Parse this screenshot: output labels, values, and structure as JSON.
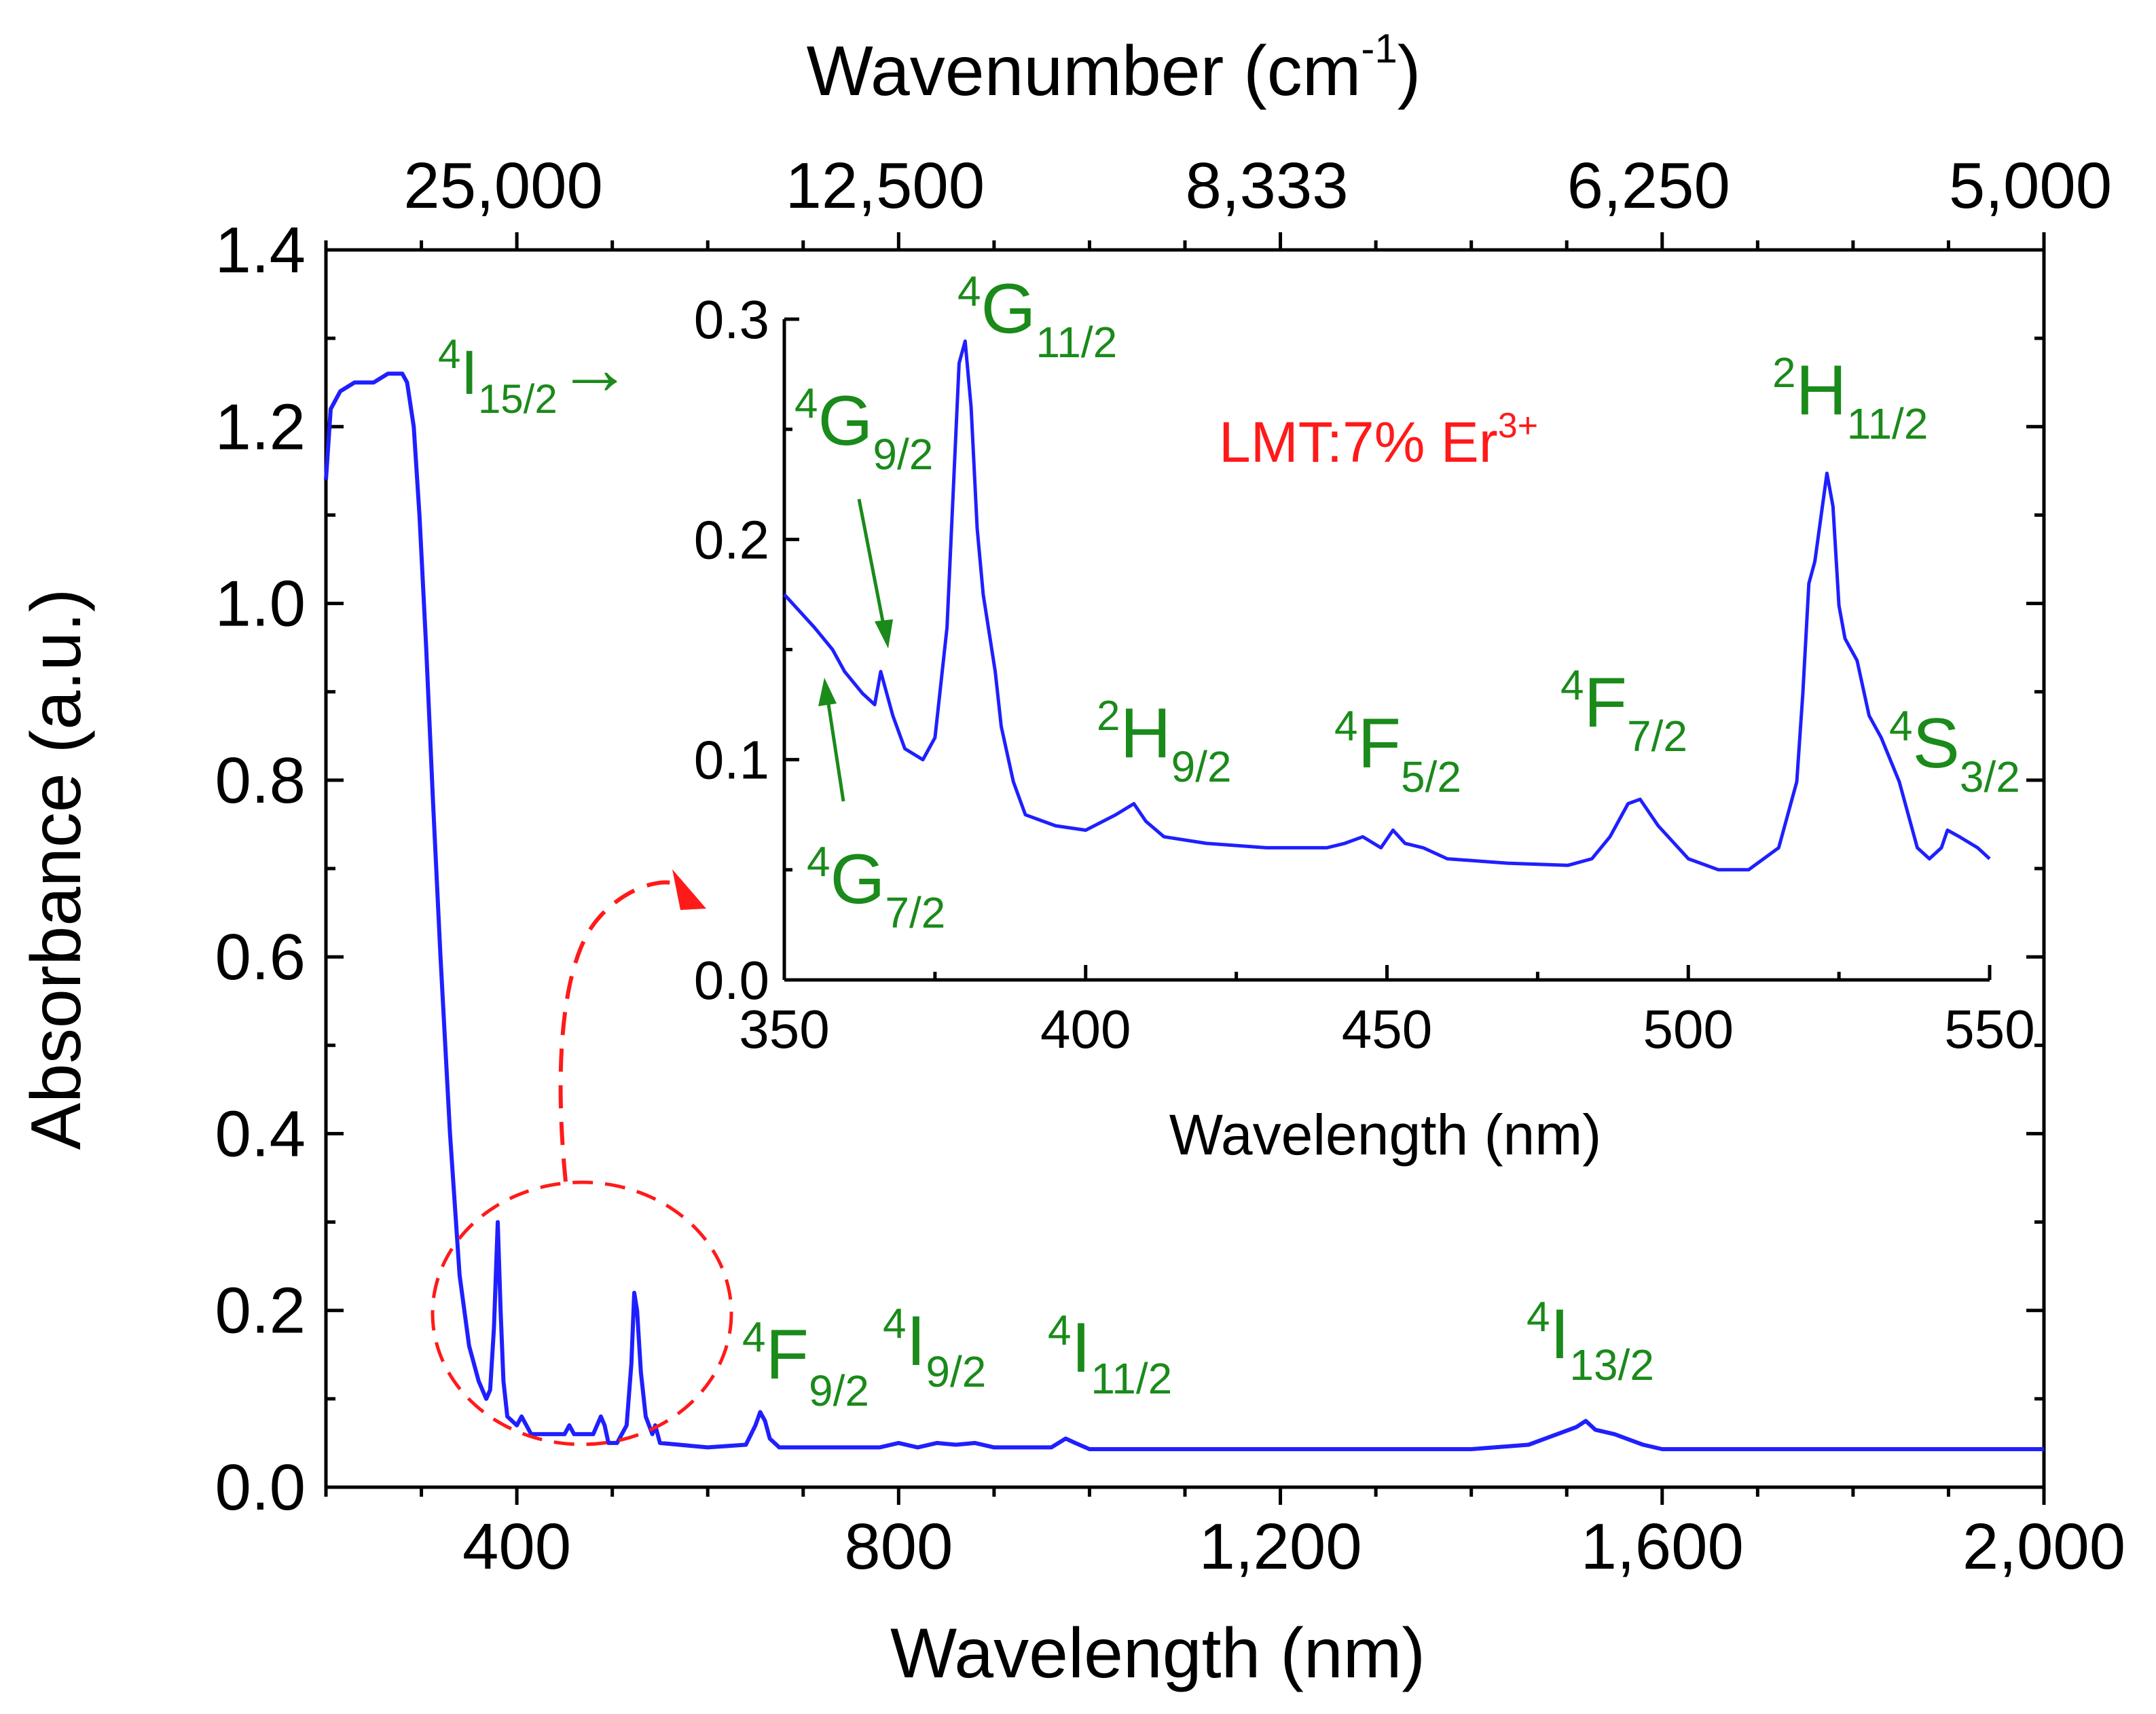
{
  "chart_data": [
    {
      "type": "line",
      "id": "main",
      "xlabel": "Wavelength (nm)",
      "ylabel": "Absorbance (a.u.)",
      "top_axis": {
        "label_main": "Wavenumber (cm",
        "label_sup": "-1",
        "label_close": ")",
        "ticks": [
          {
            "wavelength": 400,
            "label": "25,000"
          },
          {
            "wavelength": 800,
            "label": "12,500"
          },
          {
            "wavelength": 1200,
            "label": "8,333"
          },
          {
            "wavelength": 1600,
            "label": "6,250"
          },
          {
            "wavelength": 2000,
            "label": "5,000"
          }
        ]
      },
      "xlim": [
        200,
        2000
      ],
      "ylim": [
        0.0,
        1.4
      ],
      "xticks": [
        {
          "v": 400,
          "label": "400"
        },
        {
          "v": 800,
          "label": "800"
        },
        {
          "v": 1200,
          "label": "1,200"
        },
        {
          "v": 1600,
          "label": "1,600"
        },
        {
          "v": 2000,
          "label": "2,000"
        }
      ],
      "yticks": [
        {
          "v": 0.0,
          "label": "0.0"
        },
        {
          "v": 0.2,
          "label": "0.2"
        },
        {
          "v": 0.4,
          "label": "0.4"
        },
        {
          "v": 0.6,
          "label": "0.6"
        },
        {
          "v": 0.8,
          "label": "0.8"
        },
        {
          "v": 1.0,
          "label": "1.0"
        },
        {
          "v": 1.2,
          "label": "1.2"
        },
        {
          "v": 1.4,
          "label": "1.4"
        }
      ],
      "series": [
        {
          "color": "#1f1fff",
          "x": [
            200,
            205,
            215,
            230,
            250,
            265,
            280,
            285,
            292,
            298,
            305,
            312,
            320,
            330,
            340,
            350,
            360,
            368,
            372,
            376,
            380,
            383,
            386,
            390,
            400,
            405,
            410,
            415,
            430,
            450,
            455,
            460,
            480,
            488,
            492,
            496,
            505,
            515,
            520,
            523,
            526,
            530,
            535,
            542,
            545,
            550,
            600,
            640,
            650,
            655,
            660,
            665,
            675,
            700,
            780,
            800,
            820,
            840,
            860,
            880,
            900,
            960,
            975,
            985,
            1000,
            1200,
            1400,
            1460,
            1490,
            1510,
            1520,
            1530,
            1550,
            1580,
            1600,
            1800,
            2000
          ],
          "y": [
            1.14,
            1.22,
            1.24,
            1.25,
            1.25,
            1.26,
            1.26,
            1.25,
            1.2,
            1.1,
            0.95,
            0.78,
            0.6,
            0.4,
            0.24,
            0.16,
            0.12,
            0.1,
            0.11,
            0.18,
            0.3,
            0.2,
            0.12,
            0.08,
            0.07,
            0.08,
            0.07,
            0.06,
            0.06,
            0.06,
            0.07,
            0.06,
            0.06,
            0.08,
            0.07,
            0.05,
            0.05,
            0.07,
            0.14,
            0.22,
            0.2,
            0.13,
            0.08,
            0.06,
            0.07,
            0.05,
            0.045,
            0.048,
            0.07,
            0.085,
            0.075,
            0.055,
            0.045,
            0.045,
            0.045,
            0.05,
            0.045,
            0.05,
            0.048,
            0.05,
            0.045,
            0.045,
            0.055,
            0.05,
            0.043,
            0.043,
            0.043,
            0.048,
            0.06,
            0.068,
            0.075,
            0.065,
            0.06,
            0.048,
            0.043,
            0.043,
            0.043
          ]
        }
      ],
      "annotations": [
        {
          "id": "i15",
          "sup": "4",
          "main": "I",
          "sub": "15/2",
          "arrow": "→"
        },
        {
          "id": "f92",
          "sup": "4",
          "main": "F",
          "sub": "9/2"
        },
        {
          "id": "i92",
          "sup": "4",
          "main": "I",
          "sub": "9/2"
        },
        {
          "id": "i112",
          "sup": "4",
          "main": "I",
          "sub": "11/2"
        },
        {
          "id": "i132",
          "sup": "4",
          "main": "I",
          "sub": "13/2"
        }
      ]
    },
    {
      "type": "line",
      "id": "inset",
      "xlabel": "Wavelength (nm)",
      "xlim": [
        350,
        550
      ],
      "ylim": [
        0.0,
        0.3
      ],
      "xticks": [
        {
          "v": 350,
          "label": "350"
        },
        {
          "v": 400,
          "label": "400"
        },
        {
          "v": 450,
          "label": "450"
        },
        {
          "v": 500,
          "label": "500"
        },
        {
          "v": 550,
          "label": "550"
        }
      ],
      "yticks": [
        {
          "v": 0.0,
          "label": "0.0"
        },
        {
          "v": 0.1,
          "label": "0.1"
        },
        {
          "v": 0.2,
          "label": "0.2"
        },
        {
          "v": 0.3,
          "label": "0.3"
        }
      ],
      "sample_label": {
        "main": "LMT:7% Er",
        "sup": "3+"
      },
      "series": [
        {
          "color": "#1f1fff",
          "x": [
            350,
            355,
            358,
            360,
            363,
            365,
            366,
            367,
            368,
            370,
            373,
            375,
            377,
            378,
            379,
            380,
            381,
            382,
            383,
            385,
            386,
            388,
            390,
            395,
            400,
            405,
            408,
            410,
            413,
            420,
            430,
            440,
            443,
            446,
            449,
            451,
            453,
            456,
            460,
            470,
            480,
            484,
            487,
            490,
            492,
            495,
            500,
            505,
            510,
            515,
            518,
            519,
            520,
            521,
            522,
            523,
            524,
            525,
            526,
            527,
            528,
            530,
            532,
            535,
            538,
            540,
            542,
            543,
            545,
            548,
            550
          ],
          "y": [
            0.175,
            0.16,
            0.15,
            0.14,
            0.13,
            0.125,
            0.14,
            0.13,
            0.12,
            0.105,
            0.1,
            0.11,
            0.16,
            0.22,
            0.28,
            0.29,
            0.26,
            0.205,
            0.175,
            0.14,
            0.115,
            0.09,
            0.075,
            0.07,
            0.068,
            0.075,
            0.08,
            0.072,
            0.065,
            0.062,
            0.06,
            0.06,
            0.062,
            0.065,
            0.06,
            0.068,
            0.062,
            0.06,
            0.055,
            0.053,
            0.052,
            0.055,
            0.065,
            0.08,
            0.082,
            0.07,
            0.055,
            0.05,
            0.05,
            0.06,
            0.09,
            0.13,
            0.18,
            0.19,
            0.21,
            0.23,
            0.215,
            0.17,
            0.155,
            0.15,
            0.145,
            0.12,
            0.11,
            0.09,
            0.06,
            0.055,
            0.06,
            0.068,
            0.065,
            0.06,
            0.055
          ]
        }
      ],
      "annotations": [
        {
          "id": "g112",
          "sup": "4",
          "main": "G",
          "sub": "11/2"
        },
        {
          "id": "g92",
          "sup": "4",
          "main": "G",
          "sub": "9/2"
        },
        {
          "id": "g72",
          "sup": "4",
          "main": "G",
          "sub": "7/2"
        },
        {
          "id": "h92",
          "sup": "2",
          "main": "H",
          "sub": "9/2"
        },
        {
          "id": "f52",
          "sup": "4",
          "main": "F",
          "sub": "5/2"
        },
        {
          "id": "f72",
          "sup": "4",
          "main": "F",
          "sub": "7/2"
        },
        {
          "id": "h112",
          "sup": "2",
          "main": "H",
          "sub": "11/2"
        },
        {
          "id": "s32",
          "sup": "4",
          "main": "S",
          "sub": "3/2"
        }
      ]
    }
  ],
  "colors": {
    "curve": "#1f1fff",
    "annotation": "#1a8a1a",
    "highlight": "#ff1a1a"
  }
}
